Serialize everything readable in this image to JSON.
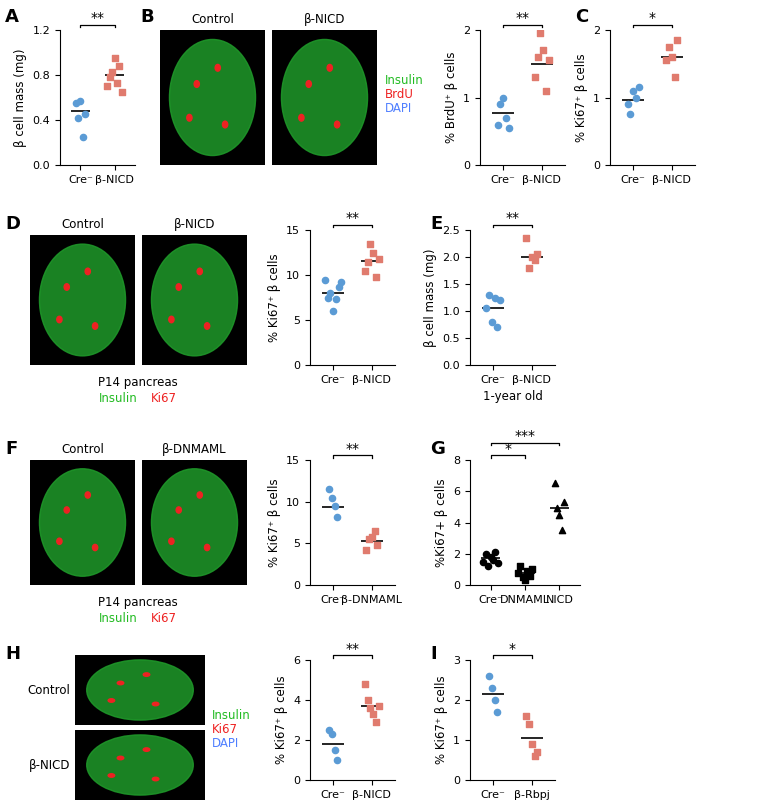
{
  "chart_data": [
    {
      "type": "scatter",
      "label": "A",
      "ylabel": "β cell mass (mg)",
      "categories": [
        "Cre⁻",
        "β-NICD"
      ],
      "values": [
        [
          0.55,
          0.42,
          0.57,
          0.25,
          0.45
        ],
        [
          0.7,
          0.78,
          0.83,
          0.95,
          0.73,
          0.88,
          0.65
        ]
      ],
      "means": [
        0.48,
        0.8
      ],
      "colors": [
        "#5b9bd5",
        "#e07b6e"
      ],
      "markers": [
        "circle",
        "square"
      ],
      "ylim": [
        0,
        1.2
      ],
      "yticks": [
        {
          "value": 0,
          "label": "0.0"
        },
        0.4,
        0.8,
        1.2
      ],
      "significance": [
        {
          "between": [
            0,
            1
          ],
          "text": "**"
        }
      ]
    },
    {
      "type": "scatter",
      "label": "B",
      "ylabel": "% BrdU⁺ β cells",
      "categories": [
        "Cre⁻",
        "β-NICD"
      ],
      "values": [
        [
          0.6,
          0.9,
          1.0,
          0.7,
          0.55
        ],
        [
          1.3,
          1.6,
          1.95,
          1.7,
          1.1,
          1.55
        ]
      ],
      "means": [
        0.77,
        1.5
      ],
      "colors": [
        "#5b9bd5",
        "#e07b6e"
      ],
      "markers": [
        "circle",
        "square"
      ],
      "ylim": [
        0,
        2
      ],
      "yticks": [
        0,
        1,
        2
      ],
      "significance": [
        {
          "between": [
            0,
            1
          ],
          "text": "**"
        }
      ]
    },
    {
      "type": "scatter",
      "label": "C",
      "ylabel": "% Ki67⁺ β cells",
      "categories": [
        "Cre⁻",
        "β-NICD"
      ],
      "values": [
        [
          0.9,
          0.75,
          1.1,
          1.0,
          1.15
        ],
        [
          1.55,
          1.75,
          1.6,
          1.3,
          1.85
        ]
      ],
      "means": [
        0.97,
        1.6
      ],
      "colors": [
        "#5b9bd5",
        "#e07b6e"
      ],
      "markers": [
        "circle",
        "square"
      ],
      "ylim": [
        0,
        2
      ],
      "yticks": [
        0,
        1,
        2
      ],
      "significance": [
        {
          "between": [
            0,
            1
          ],
          "text": "*"
        }
      ]
    },
    {
      "type": "scatter",
      "label": "D",
      "ylabel": "% Ki67⁺ β cells",
      "categories": [
        "Cre⁻",
        "β-NICD"
      ],
      "values": [
        [
          9.5,
          7.5,
          8.0,
          6.0,
          7.3,
          8.7,
          9.2
        ],
        [
          10.5,
          11.5,
          13.5,
          12.5,
          9.8,
          11.8
        ]
      ],
      "means": [
        8.0,
        11.6
      ],
      "colors": [
        "#5b9bd5",
        "#e07b6e"
      ],
      "markers": [
        "circle",
        "square"
      ],
      "ylim": [
        0,
        15
      ],
      "yticks": [
        0,
        5,
        10,
        15
      ],
      "significance": [
        {
          "between": [
            0,
            1
          ],
          "text": "**"
        }
      ]
    },
    {
      "type": "scatter",
      "label": "E",
      "ylabel": "β cell mass (mg)",
      "xlabel": "1-year old",
      "categories": [
        "Cre⁻",
        "β-NICD"
      ],
      "values": [
        [
          1.05,
          1.3,
          0.8,
          1.25,
          0.7,
          1.2
        ],
        [
          2.35,
          1.8,
          2.0,
          1.95,
          2.05
        ]
      ],
      "means": [
        1.05,
        2.0
      ],
      "colors": [
        "#5b9bd5",
        "#e07b6e"
      ],
      "markers": [
        "circle",
        "square"
      ],
      "ylim": [
        0,
        2.5
      ],
      "yticks": [
        {
          "value": 0,
          "label": "0.0"
        },
        0.5,
        {
          "value": 1,
          "label": "1.0"
        },
        1.5,
        {
          "value": 2,
          "label": "2.0"
        },
        2.5
      ],
      "significance": [
        {
          "between": [
            0,
            1
          ],
          "text": "**"
        }
      ]
    },
    {
      "type": "scatter",
      "label": "F",
      "ylabel": "% Ki67⁺ β cells",
      "categories": [
        "Cre⁻",
        "β-DNMAML"
      ],
      "values": [
        [
          11.5,
          10.5,
          9.5,
          8.2
        ],
        [
          4.2,
          5.5,
          5.8,
          6.5,
          4.8
        ]
      ],
      "means": [
        9.4,
        5.3
      ],
      "colors": [
        "#5b9bd5",
        "#e07b6e"
      ],
      "markers": [
        "circle",
        "square"
      ],
      "ylim": [
        0,
        15
      ],
      "yticks": [
        0,
        5,
        10,
        15
      ],
      "significance": [
        {
          "between": [
            0,
            1
          ],
          "text": "**"
        }
      ]
    },
    {
      "type": "scatter",
      "label": "G",
      "ylabel": "%Ki67+ β cells",
      "categories": [
        "Cre⁻",
        "DNMAML",
        "NICD"
      ],
      "values": [
        [
          1.5,
          2.0,
          1.2,
          1.8,
          1.6,
          2.1,
          1.4
        ],
        [
          0.8,
          1.2,
          0.5,
          0.3,
          0.9,
          0.6,
          1.0
        ],
        [
          6.5,
          4.9,
          4.5,
          3.5,
          5.3
        ]
      ],
      "means": [
        1.7,
        0.75,
        4.9
      ],
      "colors": [
        "#000000",
        "#000000",
        "#000000"
      ],
      "markers": [
        "circle",
        "square",
        "triangle"
      ],
      "ylim": [
        0,
        8
      ],
      "yticks": [
        0,
        2,
        4,
        6,
        8
      ],
      "significance": [
        {
          "between": [
            0,
            1
          ],
          "text": "*"
        },
        {
          "between": [
            0,
            2
          ],
          "text": "***"
        }
      ]
    },
    {
      "type": "scatter",
      "label": "H",
      "ylabel": "% Ki67⁺ β cells",
      "categories": [
        "Cre⁻",
        "β-NICD"
      ],
      "values": [
        [
          2.5,
          2.3,
          1.5,
          1.0
        ],
        [
          4.8,
          4.0,
          3.6,
          3.3,
          2.9,
          3.7
        ]
      ],
      "means": [
        1.8,
        3.7
      ],
      "colors": [
        "#5b9bd5",
        "#e07b6e"
      ],
      "markers": [
        "circle",
        "square"
      ],
      "ylim": [
        0,
        6
      ],
      "yticks": [
        0,
        2,
        4,
        6
      ],
      "significance": [
        {
          "between": [
            0,
            1
          ],
          "text": "**"
        }
      ]
    },
    {
      "type": "scatter",
      "label": "I",
      "ylabel": "% Ki67⁺ β cells",
      "categories": [
        "Cre⁻",
        "β-Rbpj"
      ],
      "values": [
        [
          2.6,
          2.3,
          2.0,
          1.7
        ],
        [
          1.6,
          1.4,
          0.9,
          0.6,
          0.7
        ]
      ],
      "means": [
        2.15,
        1.04
      ],
      "colors": [
        "#5b9bd5",
        "#e07b6e"
      ],
      "markers": [
        "circle",
        "square"
      ],
      "ylim": [
        0,
        3
      ],
      "yticks": [
        0,
        1,
        2,
        3
      ],
      "significance": [
        {
          "between": [
            0,
            1
          ],
          "text": "*"
        }
      ]
    }
  ],
  "images": [
    {
      "panel": "B",
      "titles": [
        "Control",
        "β-NICD"
      ],
      "channels": [
        {
          "name": "Insulin",
          "color": "#22bb22"
        },
        {
          "name": "BrdU",
          "color": "#ee2222"
        },
        {
          "name": "DAPI",
          "color": "#4f7fff"
        }
      ]
    },
    {
      "panel": "D",
      "titles": [
        "Control",
        "β-NICD"
      ],
      "caption": "P14 pancreas",
      "channels": [
        {
          "name": "Insulin",
          "color": "#22bb22"
        },
        {
          "name": "Ki67",
          "color": "#ee2222"
        }
      ]
    },
    {
      "panel": "F",
      "titles": [
        "Control",
        "β-DNMAML"
      ],
      "caption": "P14 pancreas",
      "channels": [
        {
          "name": "Insulin",
          "color": "#22bb22"
        },
        {
          "name": "Ki67",
          "color": "#ee2222"
        }
      ]
    },
    {
      "panel": "H",
      "titles": [
        "Control",
        "β-NICD"
      ],
      "channels": [
        {
          "name": "Insulin",
          "color": "#22bb22"
        },
        {
          "name": "Ki67",
          "color": "#ee2222"
        },
        {
          "name": "DAPI",
          "color": "#4f7fff"
        }
      ]
    }
  ]
}
